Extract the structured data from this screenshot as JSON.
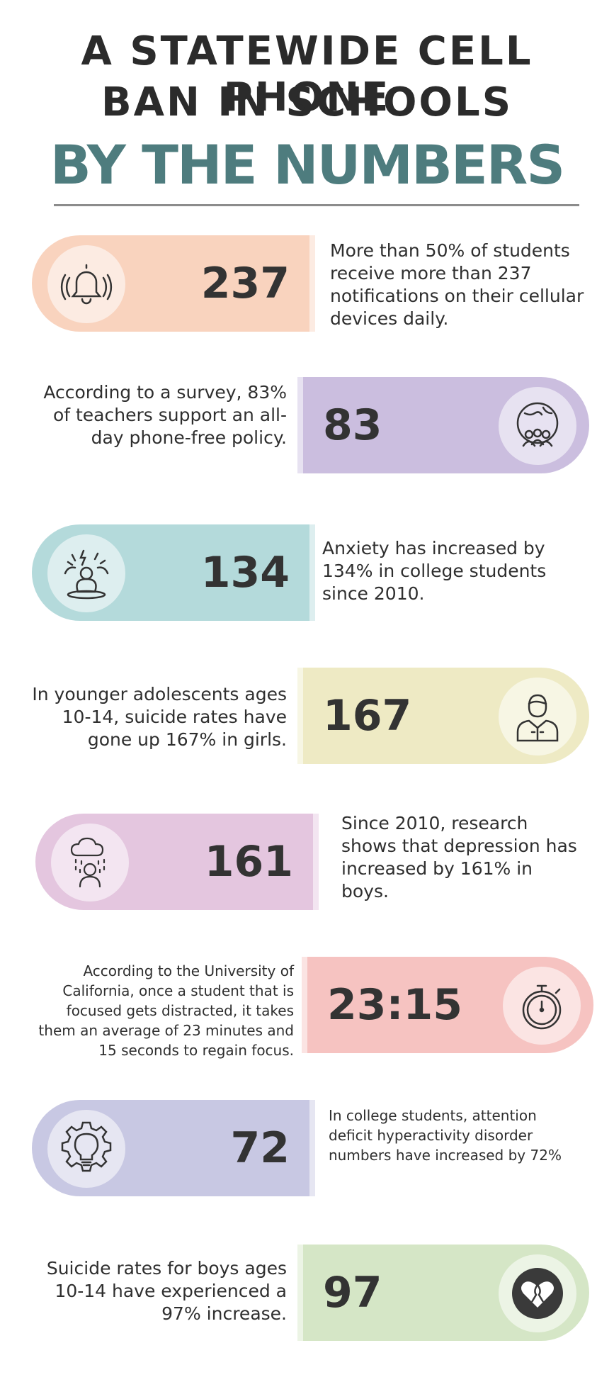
{
  "header": {
    "line1": "A STATEWIDE CELL PHONE",
    "line2": "BAN IN SCHOOLS",
    "line3": "BY THE NUMBERS"
  },
  "stats": [
    {
      "number": "237",
      "icon": "bell-ringing-icon",
      "color": "#f9d3be",
      "text": "More than 50%  of students receive more than 237 notifications on their cellular devices daily."
    },
    {
      "number": "83",
      "icon": "globe-people-icon",
      "color": "#cbbedf",
      "text": "According to a survey, 83% of teachers support an all-day phone-free policy."
    },
    {
      "number": "134",
      "icon": "anxious-person-icon",
      "color": "#b4dadb",
      "text": "Anxiety has increased by 134% in college students since 2010."
    },
    {
      "number": "167",
      "icon": "person-icon",
      "color": "#eeeac4",
      "text": "In younger adolescents ages 10-14, suicide rates have gone up 167% in girls."
    },
    {
      "number": "161",
      "icon": "rain-cloud-person-icon",
      "color": "#e4c6df",
      "text": "Since 2010, research shows that depression has increased by 161% in boys."
    },
    {
      "number": "23:15",
      "icon": "stopwatch-icon",
      "color": "#f6c3c1",
      "text": "According to the University of California, once a student that is focused gets distracted, it takes them an average of 23 minutes and 15 seconds to regain focus."
    },
    {
      "number": "72",
      "icon": "lightbulb-gear-icon",
      "color": "#c8c8e3",
      "text": "In college students, attention deficit hyperactivity disorder numbers have increased by 72%"
    },
    {
      "number": "97",
      "icon": "heart-ribbon-icon",
      "color": "#d5e6c6",
      "text": "Suicide rates for boys ages 10-14 have experienced a 97% increase."
    }
  ]
}
